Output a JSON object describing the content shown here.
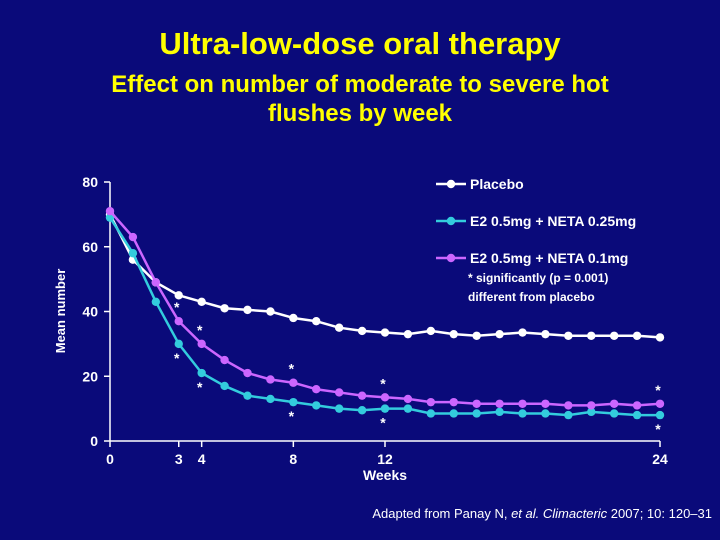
{
  "header": {
    "title": "Ultra-low-dose oral therapy",
    "subtitle_line1": "Effect on number of moderate to severe hot",
    "subtitle_line2": "flushes by week"
  },
  "citation": {
    "prefix": "Adapted from Panay N, ",
    "etal": "et al.",
    "journal": " Climacteric",
    "suffix": " 2007; 10: 120–31"
  },
  "colors": {
    "background": "#0a0a7a",
    "title": "#ffff00",
    "placebo": "#ffffff",
    "low": "#33ccdd",
    "ultralow": "#cc66ff"
  },
  "chart_data": {
    "type": "line",
    "xlabel": "Weeks",
    "ylabel": "Mean number",
    "xlim": [
      0,
      24
    ],
    "ylim": [
      0,
      80
    ],
    "xticks": [
      0,
      3,
      4,
      8,
      12,
      24
    ],
    "yticks": [
      0,
      20,
      40,
      60,
      80
    ],
    "legend_position": "top-right",
    "note_line1": "* significantly (p = 0.001)",
    "note_line2": "different from placebo",
    "series": [
      {
        "name": "Placebo",
        "x": [
          0,
          1,
          2,
          3,
          4,
          5,
          6,
          7,
          8,
          9,
          10,
          11,
          12,
          13,
          14,
          15,
          16,
          17,
          18,
          19,
          20,
          21,
          22,
          23,
          24
        ],
        "values": [
          70,
          56,
          49,
          45,
          43,
          41,
          40.5,
          40,
          38,
          37,
          35,
          34,
          33.5,
          33,
          34,
          33,
          32.5,
          33,
          33.5,
          33,
          32.5,
          32.5,
          32.5,
          32.5,
          32
        ]
      },
      {
        "name": "E2 0.5mg + NETA 0.25mg",
        "x": [
          0,
          1,
          2,
          3,
          4,
          5,
          6,
          7,
          8,
          9,
          10,
          11,
          12,
          13,
          14,
          15,
          16,
          17,
          18,
          19,
          20,
          21,
          22,
          23,
          24
        ],
        "values": [
          69,
          58,
          43,
          30,
          21,
          17,
          14,
          13,
          12,
          11,
          10,
          9.5,
          10,
          10,
          8.5,
          8.5,
          8.5,
          9,
          8.5,
          8.5,
          8,
          9,
          8.5,
          8,
          8
        ]
      },
      {
        "name": "E2 0.5mg + NETA 0.1mg",
        "x": [
          0,
          1,
          2,
          3,
          4,
          5,
          6,
          7,
          8,
          9,
          10,
          11,
          12,
          13,
          14,
          15,
          16,
          17,
          18,
          19,
          20,
          21,
          22,
          23,
          24
        ],
        "values": [
          71,
          63,
          49,
          37,
          30,
          25,
          21,
          19,
          18,
          16,
          15,
          14,
          13.5,
          13,
          12,
          12,
          11.5,
          11.5,
          11.5,
          11.5,
          11,
          11,
          11.5,
          11,
          11.5
        ]
      }
    ],
    "asterisk_marks": [
      {
        "series": "E2 0.5mg + NETA 0.1mg",
        "x": [
          3,
          4,
          8,
          12,
          24
        ]
      },
      {
        "series": "E2 0.5mg + NETA 0.25mg",
        "x": [
          3,
          4,
          8,
          12,
          24
        ]
      }
    ]
  }
}
